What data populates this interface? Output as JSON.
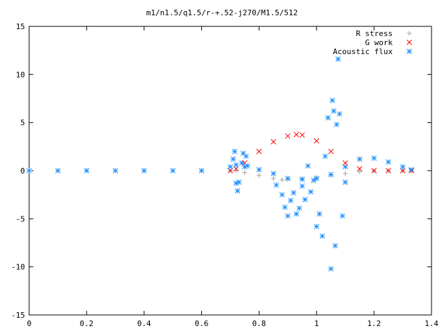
{
  "chart_data": {
    "type": "scatter",
    "title": "m1/n1.5/q1.5/r-+.52-j270/M1.5/512",
    "xlabel": "",
    "ylabel": "",
    "xlim": [
      0,
      1.4
    ],
    "ylim": [
      -15,
      15
    ],
    "xticks": [
      0,
      0.2,
      0.4,
      0.6,
      0.8,
      1,
      1.2,
      1.4
    ],
    "yticks": [
      -15,
      -10,
      -5,
      0,
      5,
      10,
      15
    ],
    "grid": false,
    "legend_position": "top-right",
    "series": [
      {
        "name": "R stress",
        "marker": "+",
        "color": "#a0a0a0",
        "x": [
          0.0,
          0.2,
          0.4,
          0.6,
          0.7,
          0.72,
          0.75,
          0.8,
          0.85,
          0.88,
          0.9,
          0.95,
          1.0,
          1.05,
          1.1,
          1.15,
          1.2,
          1.25,
          1.3,
          1.33
        ],
        "y": [
          0,
          0,
          0,
          0,
          0,
          0,
          -0.2,
          -0.5,
          -0.8,
          -0.95,
          -0.9,
          -0.8,
          -0.7,
          -0.5,
          -0.3,
          -0.1,
          0.0,
          0.0,
          0.0,
          0.0
        ]
      },
      {
        "name": "G work",
        "marker": "x",
        "color": "#ff0000",
        "x": [
          0.7,
          0.72,
          0.75,
          0.8,
          0.85,
          0.9,
          0.93,
          0.95,
          1.0,
          1.05,
          1.1,
          1.15,
          1.2,
          1.25,
          1.3,
          1.33
        ],
        "y": [
          0.0,
          0.2,
          0.8,
          2.0,
          3.0,
          3.6,
          3.75,
          3.7,
          3.1,
          2.0,
          0.8,
          0.2,
          0.0,
          0.0,
          0.0,
          0.0
        ]
      },
      {
        "name": "Acoustic flux",
        "marker": "*",
        "color": "#1e90ff",
        "x": [
          0.0,
          0.1,
          0.2,
          0.3,
          0.4,
          0.5,
          0.6,
          0.7,
          0.72,
          0.75,
          0.8,
          0.85,
          0.9,
          0.95,
          1.0,
          1.05,
          1.1,
          1.15,
          1.2,
          1.25,
          1.3,
          1.33,
          0.71,
          0.715,
          0.72,
          0.725,
          0.73,
          0.74,
          0.745,
          0.755,
          0.76,
          0.86,
          0.88,
          0.89,
          0.9,
          0.91,
          0.92,
          0.93,
          0.94,
          0.95,
          0.96,
          0.97,
          0.98,
          0.99,
          1.0,
          1.01,
          1.02,
          1.03,
          1.04,
          1.05,
          1.055,
          1.06,
          1.065,
          1.07,
          1.075,
          1.08,
          1.09,
          1.1
        ],
        "y": [
          0,
          0,
          0,
          0,
          0,
          0,
          0,
          0.4,
          0.6,
          0.4,
          0.1,
          -0.3,
          -0.8,
          -0.9,
          -0.8,
          -0.4,
          0.4,
          1.2,
          1.3,
          0.9,
          0.4,
          0.1,
          1.2,
          2.0,
          -1.3,
          -2.1,
          -1.2,
          0.8,
          1.8,
          1.5,
          0.5,
          -1.5,
          -2.5,
          -3.8,
          -4.7,
          -3.1,
          -2.3,
          -4.5,
          -3.9,
          -1.6,
          -3.0,
          0.5,
          -2.2,
          -1.0,
          -5.8,
          -4.5,
          -6.8,
          1.5,
          5.5,
          -10.2,
          7.3,
          6.2,
          -7.8,
          4.8,
          11.6,
          5.9,
          -4.7,
          -1.2
        ]
      }
    ]
  }
}
